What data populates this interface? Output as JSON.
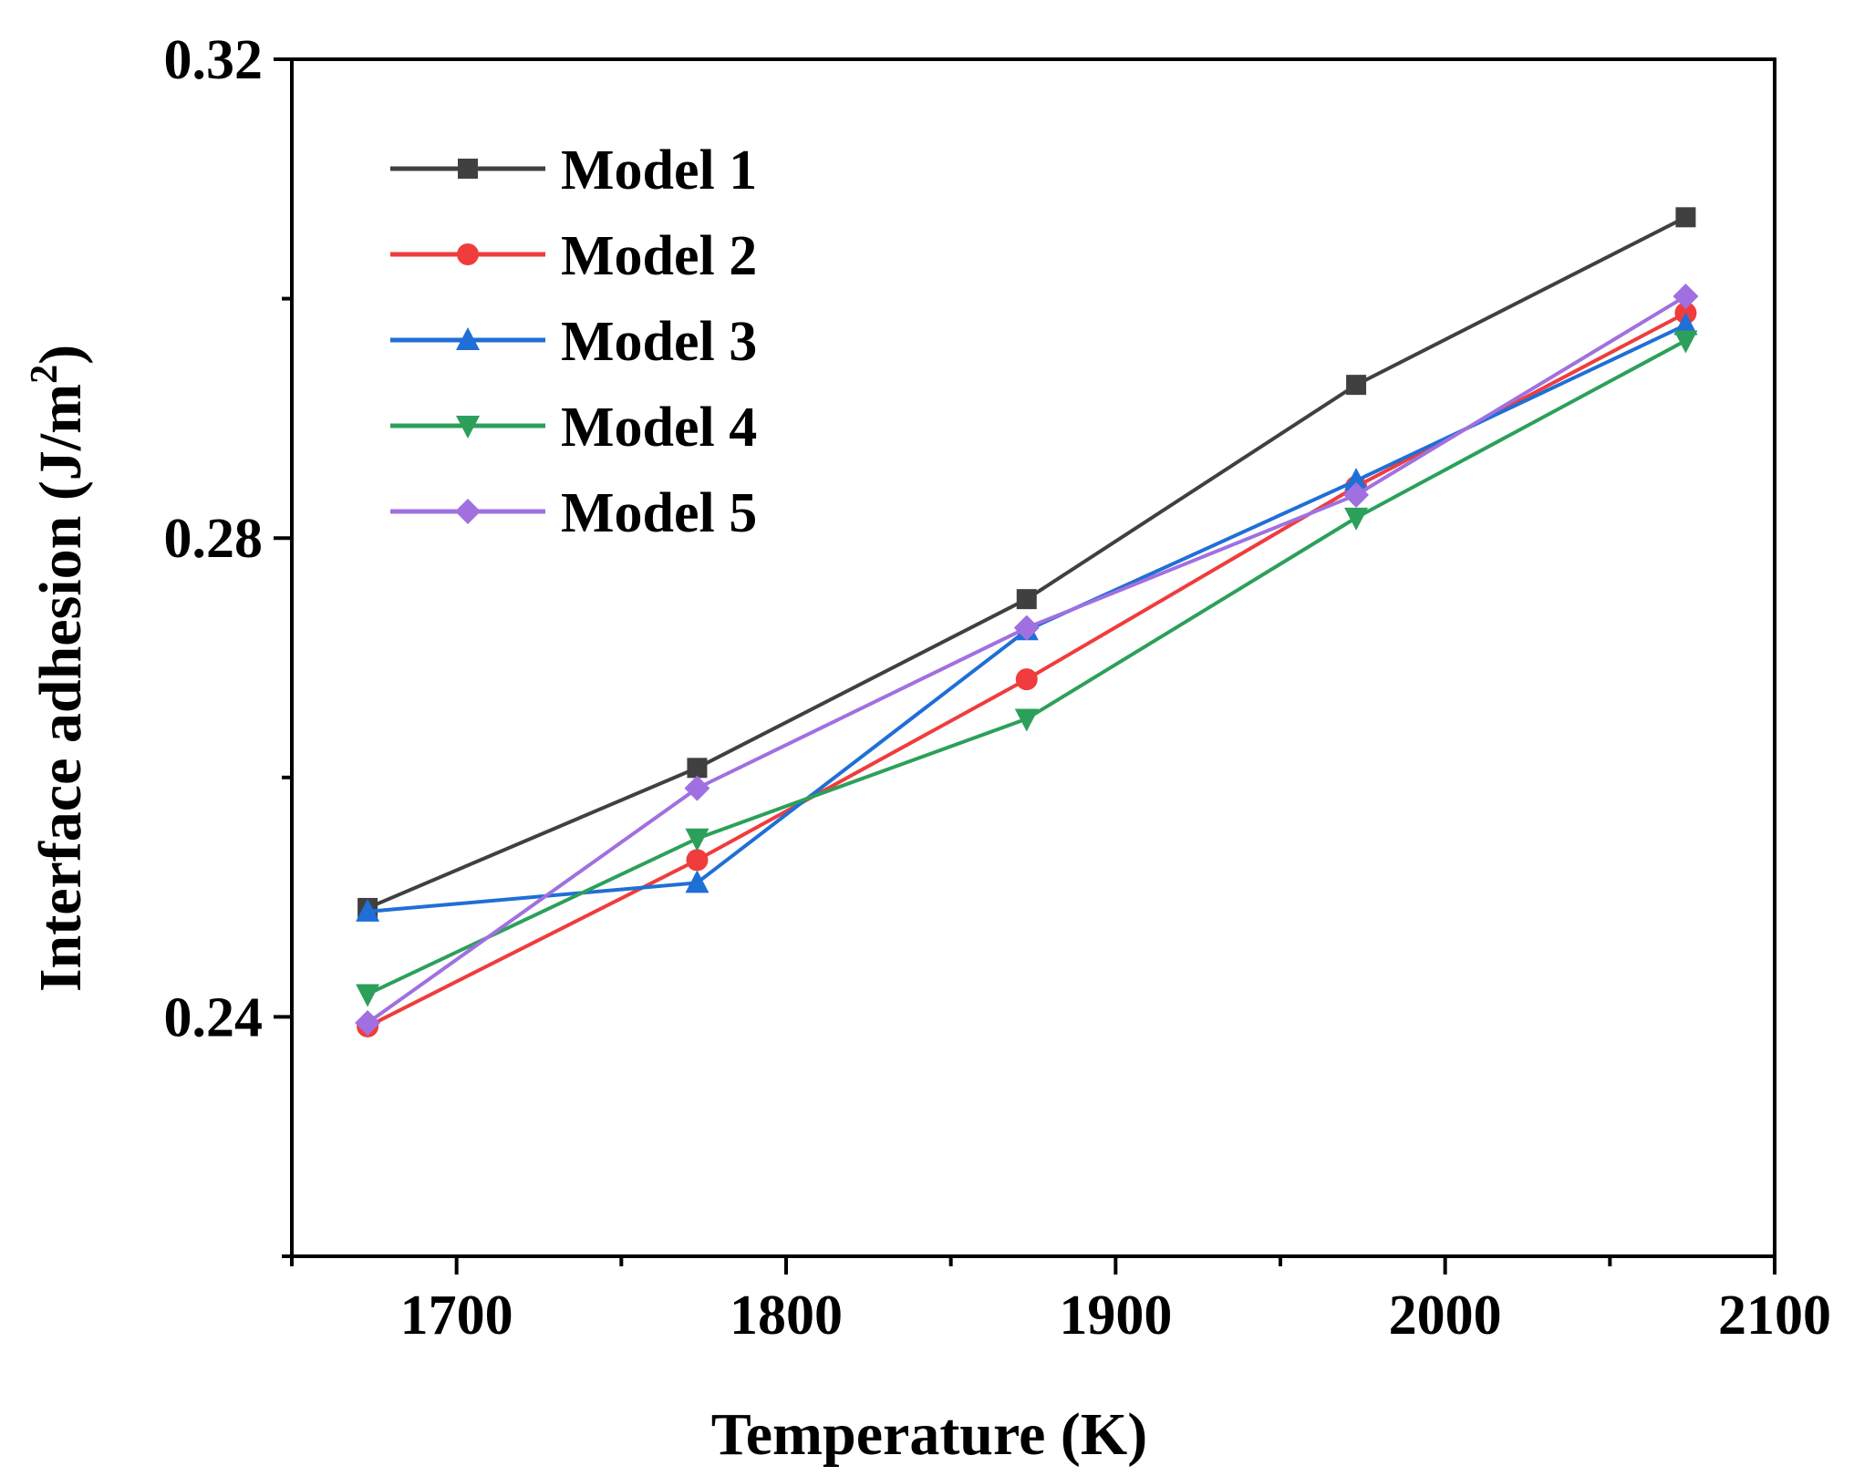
{
  "chart_data": {
    "type": "line",
    "title": "",
    "xlabel": "Temperature (K)",
    "ylabel_main": "Interface adhesion (J/m",
    "ylabel_sup": "2",
    "ylabel_close": ")",
    "xlim": [
      1650,
      2100
    ],
    "ylim": [
      0.22,
      0.32
    ],
    "x_ticks": [
      1700,
      1800,
      1900,
      2000,
      2100
    ],
    "x_tick_labels": [
      "1700",
      "1800",
      "1900",
      "2000",
      "2100"
    ],
    "x_minor_ticks": [
      1650,
      1750,
      1850,
      1950,
      2050
    ],
    "y_ticks": [
      0.24,
      0.28,
      0.32
    ],
    "y_tick_labels": [
      "0.24",
      "0.28",
      "0.32"
    ],
    "y_minor_ticks": [
      0.22,
      0.26,
      0.3
    ],
    "legend_position": "top-left",
    "x": [
      1673,
      1773,
      1873,
      1973,
      2073
    ],
    "series": [
      {
        "name": "Model 1",
        "color": "#404040",
        "marker": "square",
        "values": [
          0.2491,
          0.2608,
          0.2749,
          0.2928,
          0.3068
        ]
      },
      {
        "name": "Model 2",
        "color": "#f03c3c",
        "marker": "circle",
        "values": [
          0.2392,
          0.2531,
          0.2682,
          0.2843,
          0.2988
        ]
      },
      {
        "name": "Model 3",
        "color": "#1f6fd6",
        "marker": "triangle-up",
        "values": [
          0.2488,
          0.2512,
          0.2723,
          0.2848,
          0.2978
        ]
      },
      {
        "name": "Model 4",
        "color": "#2ca05a",
        "marker": "triangle-down",
        "values": [
          0.2419,
          0.2549,
          0.2649,
          0.2817,
          0.2965
        ]
      },
      {
        "name": "Model 5",
        "color": "#a070e0",
        "marker": "diamond",
        "values": [
          0.2395,
          0.2591,
          0.2725,
          0.2836,
          0.3002
        ]
      }
    ]
  }
}
